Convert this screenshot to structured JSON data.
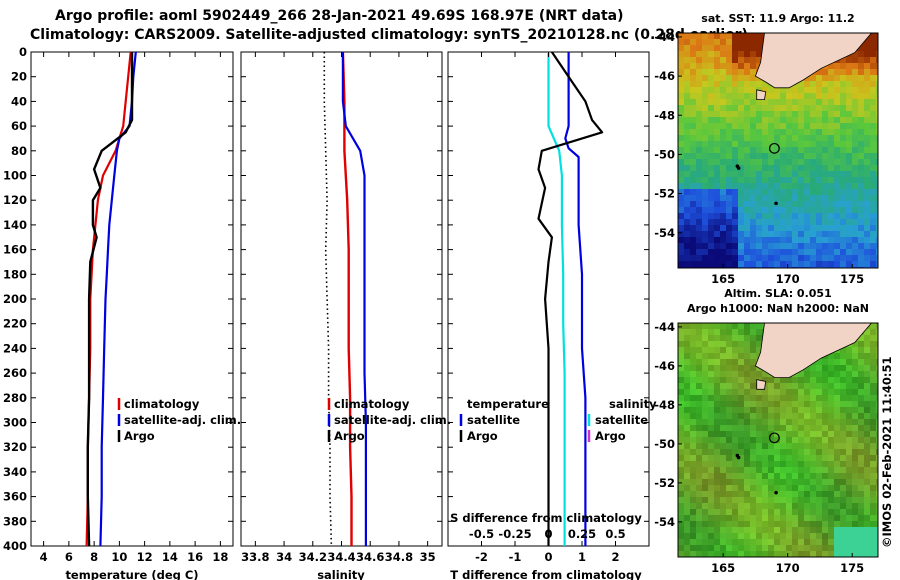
{
  "title_line1": "Argo profile: aoml 5902449_266 28-Jan-2021 49.69S 168.97E (NRT data)",
  "title_line2": "Climatology: CARS2009. Satellite-adjusted climatology: synTS_20210128.nc (0.28d earlier)",
  "watermark": "©IMOS 02-Feb-2021 11:40:51",
  "colors": {
    "climatology": "#e00000",
    "satellite": "#0000e0",
    "argo": "#000000",
    "sal_satellite": "#00e0e0",
    "sal_argo": "#cc33cc"
  },
  "chart_data": [
    {
      "type": "line",
      "name": "temperature_profile",
      "xlabel": "temperature (deg C)",
      "ylabel": "",
      "xlim": [
        3,
        19
      ],
      "ylim": [
        400,
        0
      ],
      "xticks": [
        "4",
        "6",
        "8",
        "10",
        "12",
        "14",
        "16",
        "18"
      ],
      "yticks": [
        "0",
        "20",
        "40",
        "60",
        "80",
        "100",
        "120",
        "140",
        "160",
        "180",
        "200",
        "220",
        "240",
        "260",
        "280",
        "300",
        "320",
        "340",
        "360",
        "380",
        "400"
      ],
      "legend": [
        "climatology",
        "satellite-adj. clim.",
        "Argo"
      ],
      "series": [
        {
          "name": "climatology",
          "points": [
            [
              10.9,
              0
            ],
            [
              10.7,
              20
            ],
            [
              10.5,
              40
            ],
            [
              10.3,
              60
            ],
            [
              9.7,
              80
            ],
            [
              8.7,
              100
            ],
            [
              8.3,
              120
            ],
            [
              8.1,
              140
            ],
            [
              7.9,
              160
            ],
            [
              7.8,
              180
            ],
            [
              7.7,
              200
            ],
            [
              7.7,
              240
            ],
            [
              7.6,
              280
            ],
            [
              7.5,
              320
            ],
            [
              7.5,
              360
            ],
            [
              7.4,
              400
            ]
          ]
        },
        {
          "name": "satellite-adj. clim.",
          "points": [
            [
              11.3,
              0
            ],
            [
              11.1,
              20
            ],
            [
              11.0,
              40
            ],
            [
              10.8,
              60
            ],
            [
              10.0,
              70
            ],
            [
              9.8,
              80
            ],
            [
              9.6,
              100
            ],
            [
              9.4,
              120
            ],
            [
              9.2,
              140
            ],
            [
              9.1,
              160
            ],
            [
              9.0,
              180
            ],
            [
              8.9,
              200
            ],
            [
              8.8,
              240
            ],
            [
              8.7,
              280
            ],
            [
              8.6,
              320
            ],
            [
              8.6,
              360
            ],
            [
              8.5,
              400
            ]
          ]
        },
        {
          "name": "Argo",
          "points": [
            [
              11.0,
              0
            ],
            [
              11.0,
              20
            ],
            [
              11.0,
              40
            ],
            [
              11.0,
              55
            ],
            [
              10.5,
              65
            ],
            [
              8.6,
              80
            ],
            [
              8.0,
              95
            ],
            [
              8.5,
              110
            ],
            [
              7.9,
              120
            ],
            [
              7.9,
              140
            ],
            [
              8.2,
              150
            ],
            [
              7.7,
              170
            ],
            [
              7.6,
              200
            ],
            [
              7.6,
              240
            ],
            [
              7.6,
              280
            ],
            [
              7.5,
              320
            ],
            [
              7.5,
              360
            ],
            [
              7.6,
              400
            ]
          ]
        }
      ]
    },
    {
      "type": "line",
      "name": "salinity_profile",
      "xlabel": "salinity",
      "ylabel": "",
      "xlim": [
        33.7,
        35.1
      ],
      "ylim": [
        400,
        0
      ],
      "xticks": [
        "33.8",
        "34",
        "34.2",
        "34.4",
        "34.6",
        "34.8",
        "35"
      ],
      "legend": [
        "climatology",
        "satellite-adj. clim.",
        "Argo"
      ],
      "series": [
        {
          "name": "climatology",
          "points": [
            [
              34.41,
              0
            ],
            [
              34.42,
              40
            ],
            [
              34.42,
              80
            ],
            [
              34.44,
              120
            ],
            [
              34.45,
              160
            ],
            [
              34.45,
              200
            ],
            [
              34.45,
              240
            ],
            [
              34.46,
              280
            ],
            [
              34.46,
              320
            ],
            [
              34.47,
              360
            ],
            [
              34.47,
              400
            ]
          ]
        },
        {
          "name": "satellite-adj. clim.",
          "points": [
            [
              34.41,
              0
            ],
            [
              34.41,
              40
            ],
            [
              34.43,
              60
            ],
            [
              34.53,
              80
            ],
            [
              34.56,
              100
            ],
            [
              34.56,
              140
            ],
            [
              34.56,
              200
            ],
            [
              34.56,
              260
            ],
            [
              34.57,
              300
            ],
            [
              34.57,
              340
            ],
            [
              34.57,
              400
            ]
          ]
        },
        {
          "name": "Argo",
          "points": [
            [
              34.28,
              0
            ],
            [
              34.28,
              40
            ],
            [
              34.29,
              80
            ],
            [
              34.3,
              120
            ],
            [
              34.29,
              160
            ],
            [
              34.3,
              200
            ],
            [
              34.31,
              240
            ],
            [
              34.31,
              280
            ],
            [
              34.32,
              320
            ],
            [
              34.32,
              360
            ],
            [
              34.33,
              400
            ]
          ]
        }
      ]
    },
    {
      "type": "line",
      "name": "difference_profile",
      "xlabel": "T difference from climatology",
      "top_label": "S difference from climatology",
      "xlim": [
        -3,
        3
      ],
      "ylim": [
        400,
        0
      ],
      "xticks": [
        "-2",
        "-1",
        "0",
        "1",
        "2"
      ],
      "sticks": [
        "-0.5",
        "-0.25",
        "0",
        "0.25",
        "0.5"
      ],
      "legend_temperature_title": "temperature",
      "legend_salinity_title": "salinity",
      "legend_temperature": [
        "satellite",
        "Argo"
      ],
      "legend_salinity": [
        "satellite",
        "Argo"
      ],
      "series": [
        {
          "name": "temperature satellite",
          "points": [
            [
              0.6,
              0
            ],
            [
              0.6,
              20
            ],
            [
              0.6,
              40
            ],
            [
              0.6,
              60
            ],
            [
              0.5,
              70
            ],
            [
              0.6,
              78
            ],
            [
              0.9,
              85
            ],
            [
              0.9,
              100
            ],
            [
              0.9,
              140
            ],
            [
              1.0,
              180
            ],
            [
              1.0,
              240
            ],
            [
              1.1,
              280
            ],
            [
              1.1,
              320
            ],
            [
              1.1,
              360
            ],
            [
              1.1,
              400
            ]
          ]
        },
        {
          "name": "temperature Argo",
          "points": [
            [
              0.1,
              0
            ],
            [
              0.6,
              20
            ],
            [
              1.1,
              40
            ],
            [
              1.3,
              55
            ],
            [
              1.6,
              65
            ],
            [
              -0.2,
              80
            ],
            [
              -0.3,
              95
            ],
            [
              -0.1,
              110
            ],
            [
              -0.3,
              135
            ],
            [
              0.1,
              150
            ],
            [
              0,
              170
            ],
            [
              -0.1,
              200
            ],
            [
              0,
              240
            ],
            [
              0,
              280
            ],
            [
              0,
              320
            ],
            [
              0,
              360
            ],
            [
              0,
              400
            ]
          ]
        },
        {
          "name": "salinity satellite",
          "points": [
            [
              0,
              0
            ],
            [
              0,
              40
            ],
            [
              0,
              60
            ],
            [
              0.08,
              80
            ],
            [
              0.1,
              100
            ],
            [
              0.1,
              140
            ],
            [
              0.11,
              180
            ],
            [
              0.11,
              220
            ],
            [
              0.12,
              260
            ],
            [
              0.12,
              300
            ],
            [
              0.12,
              340
            ],
            [
              0.12,
              400
            ]
          ]
        }
      ]
    },
    {
      "type": "heatmap",
      "name": "sst_map",
      "title": "sat. SST: 11.9 Argo: 11.2",
      "xticks": [
        "165",
        "170",
        "175"
      ],
      "yticks": [
        "-44",
        "-46",
        "-48",
        "-50",
        "-52",
        "-54"
      ],
      "xlim": [
        161.5,
        177
      ],
      "ylim": [
        -55.8,
        -43.8
      ],
      "argo_location": [
        168.97,
        -49.69
      ]
    },
    {
      "type": "heatmap",
      "name": "sla_map",
      "title": "Altim. SLA: 0.051",
      "subtitle": "Argo h1000: NaN h2000: NaN",
      "xticks": [
        "165",
        "170",
        "175"
      ],
      "yticks": [
        "-44",
        "-46",
        "-48",
        "-50",
        "-52",
        "-54"
      ],
      "xlim": [
        161.5,
        177
      ],
      "ylim": [
        -55.8,
        -43.8
      ],
      "argo_location": [
        168.97,
        -49.69
      ]
    }
  ]
}
